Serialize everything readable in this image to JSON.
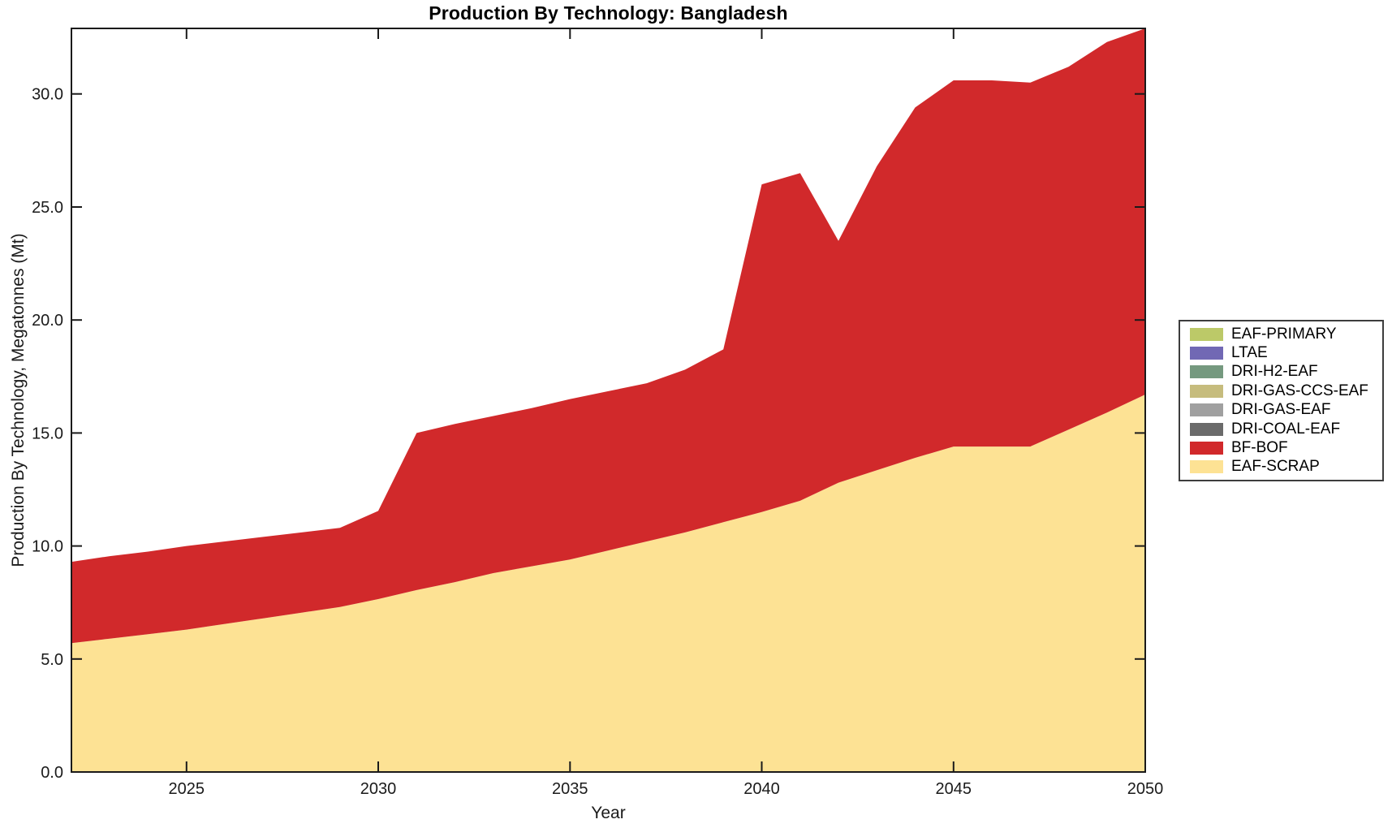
{
  "figure": {
    "background": "#ffffff",
    "frame_color": "#1a1a1a",
    "tick_label_color": "#1a1a1a"
  },
  "chart_data": {
    "type": "area",
    "stacked": true,
    "title": "Production By Technology: Bangladesh",
    "xlabel": "Year",
    "ylabel": "Production By Technology, Megatonnes (Mt)",
    "xlim": [
      2022,
      2050
    ],
    "ylim": [
      0,
      32.9
    ],
    "grid": false,
    "legend_position": "outside-right",
    "x": [
      2022,
      2023,
      2024,
      2025,
      2026,
      2027,
      2028,
      2029,
      2030,
      2031,
      2032,
      2033,
      2034,
      2035,
      2036,
      2037,
      2038,
      2039,
      2040,
      2041,
      2042,
      2043,
      2044,
      2045,
      2046,
      2047,
      2048,
      2049,
      2050
    ],
    "xticks": {
      "values": [
        2025,
        2030,
        2035,
        2040,
        2045,
        2050
      ],
      "labels": [
        "2025",
        "2030",
        "2035",
        "2040",
        "2045",
        "2050"
      ]
    },
    "yticks": {
      "values": [
        0,
        5,
        10,
        15,
        20,
        25,
        30
      ],
      "labels": [
        "0.0",
        "5.0",
        "10.0",
        "15.0",
        "20.0",
        "25.0",
        "30.0"
      ]
    },
    "series": [
      {
        "name": "EAF-SCRAP",
        "color": "#fde294",
        "values": [
          5.7,
          5.9,
          6.1,
          6.3,
          6.55,
          6.8,
          7.05,
          7.3,
          7.65,
          8.05,
          8.4,
          8.8,
          9.1,
          9.4,
          9.8,
          10.2,
          10.6,
          11.05,
          11.5,
          12.0,
          12.8,
          13.35,
          13.9,
          14.4,
          14.4,
          14.4,
          15.15,
          15.9,
          16.7
        ]
      },
      {
        "name": "BF-BOF",
        "color": "#d1292b",
        "values": [
          3.6,
          3.65,
          3.65,
          3.7,
          3.65,
          3.6,
          3.55,
          3.5,
          3.9,
          6.95,
          7.0,
          6.95,
          7.0,
          7.1,
          7.05,
          7.0,
          7.2,
          7.65,
          14.5,
          14.5,
          10.7,
          13.45,
          15.5,
          16.2,
          16.2,
          16.1,
          16.05,
          16.4,
          16.2
        ]
      },
      {
        "name": "DRI-COAL-EAF",
        "color": "#6b6b6b",
        "values": 0
      },
      {
        "name": "DRI-GAS-EAF",
        "color": "#a0a0a0",
        "values": 0
      },
      {
        "name": "DRI-GAS-CCS-EAF",
        "color": "#c6bc7d",
        "values": 0
      },
      {
        "name": "DRI-H2-EAF",
        "color": "#75997f",
        "values": 0
      },
      {
        "name": "LTAE",
        "color": "#7168b4",
        "values": 0
      },
      {
        "name": "EAF-PRIMARY",
        "color": "#bcc968",
        "values": 0
      }
    ]
  }
}
